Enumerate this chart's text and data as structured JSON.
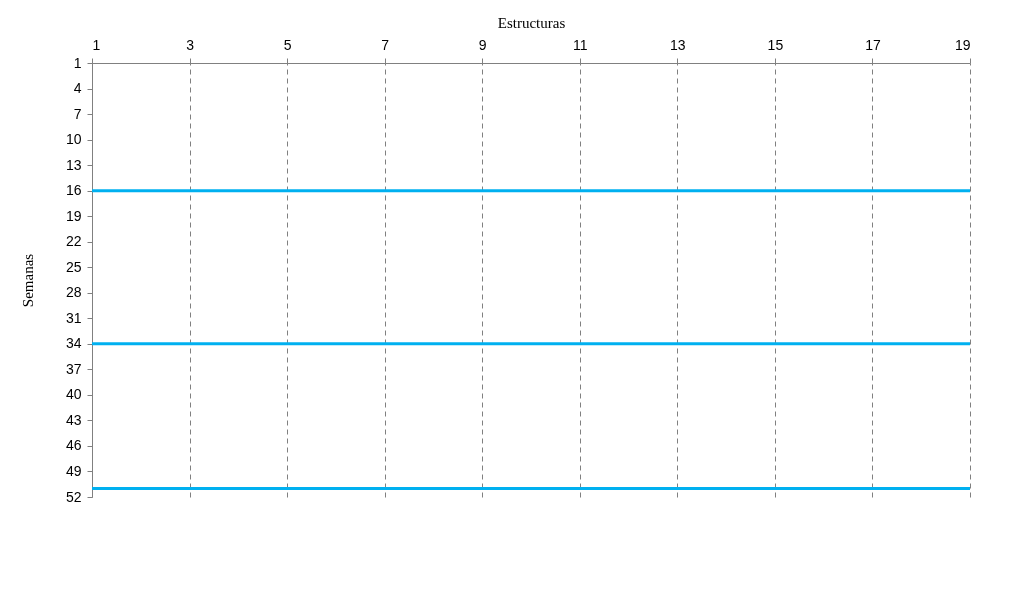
{
  "chart_data": {
    "type": "line",
    "xlabel": "Estructuras",
    "ylabel": "Semanas",
    "xlim": [
      1,
      19
    ],
    "xticks": [
      1,
      3,
      5,
      7,
      9,
      11,
      13,
      15,
      17,
      19
    ],
    "ylim": [
      52,
      1
    ],
    "yticks": [
      1,
      4,
      7,
      10,
      13,
      16,
      19,
      22,
      25,
      28,
      31,
      34,
      37,
      40,
      43,
      46,
      49,
      52
    ],
    "grid": "x",
    "ref_lines": [
      {
        "axis": "y",
        "value": 16,
        "color": "#00b0f0",
        "line_style": "solid"
      },
      {
        "axis": "y",
        "value": 34,
        "color": "#00b0f0",
        "line_style": "solid"
      },
      {
        "axis": "y",
        "value": 51,
        "color": "#00b0f0",
        "line_style": "solid"
      }
    ]
  }
}
